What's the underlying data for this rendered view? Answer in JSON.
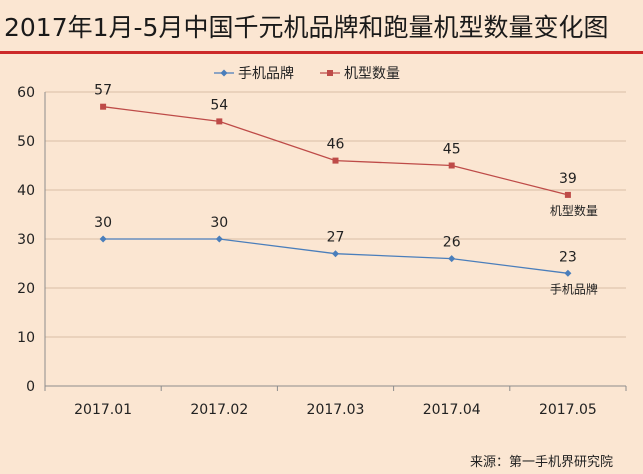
{
  "title": "2017年1月-5月中国千元机品牌和跑量机型数量变化图",
  "source": "来源：第一手机界研究院",
  "colors": {
    "background": "#fbe6d2",
    "title_rule": "#cc2a2a",
    "brands_series": "#4a7ebb",
    "models_series": "#be4b48"
  },
  "chart_data": {
    "type": "line",
    "categories": [
      "2017.01",
      "2017.02",
      "2017.03",
      "2017.04",
      "2017.05"
    ],
    "ylim": [
      0,
      60
    ],
    "yticks": [
      0,
      10,
      20,
      30,
      40,
      50,
      60
    ],
    "grid": true,
    "legend_position": "top",
    "series": [
      {
        "name": "手机品牌",
        "values": [
          30,
          30,
          27,
          26,
          23
        ],
        "marker": "diamond",
        "end_label": "手机品牌"
      },
      {
        "name": "机型数量",
        "values": [
          57,
          54,
          46,
          45,
          39
        ],
        "marker": "square",
        "end_label": "机型数量"
      }
    ]
  }
}
